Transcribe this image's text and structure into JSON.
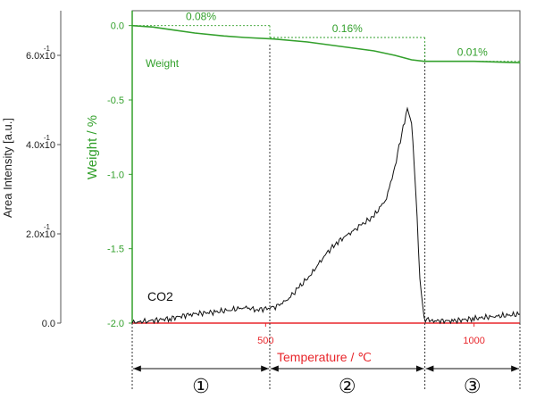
{
  "colors": {
    "weight": "#33a02c",
    "co2": "#111111",
    "temp_axis": "#e8262b",
    "left_axis": "#555555"
  },
  "chart_data": {
    "type": "line",
    "title": "",
    "left_axis": {
      "label": "Area Intensity [a.u.]",
      "ticks": [
        {
          "value": 0.0,
          "label": "0.0",
          "exp": ""
        },
        {
          "value": 0.2,
          "label": "2.0x10",
          "exp": "-1"
        },
        {
          "value": 0.4,
          "label": "4.0x10",
          "exp": "-1"
        },
        {
          "value": 0.6,
          "label": "6.0x10",
          "exp": "-1"
        }
      ],
      "range": [
        0,
        0.7
      ]
    },
    "weight_axis": {
      "label": "Weight / %",
      "ticks": [
        {
          "value": 0.0,
          "label": "0.0"
        },
        {
          "value": -0.5,
          "label": "-0.5"
        },
        {
          "value": -1.0,
          "label": "-1.0"
        },
        {
          "value": -1.5,
          "label": "-1.5"
        },
        {
          "value": -2.0,
          "label": "-2.0"
        }
      ],
      "range": [
        -2.0,
        0.1
      ]
    },
    "x_axis": {
      "label": "Temperature / ℃",
      "ticks": [
        {
          "value": 500,
          "label": "500"
        },
        {
          "value": 1000,
          "label": "1000"
        }
      ],
      "range": [
        180,
        1110
      ]
    },
    "series": [
      {
        "name": "Weight",
        "axis": "weight",
        "points": [
          [
            180,
            0.0
          ],
          [
            230,
            -0.01
          ],
          [
            280,
            -0.03
          ],
          [
            330,
            -0.05
          ],
          [
            400,
            -0.07
          ],
          [
            450,
            -0.08
          ],
          [
            520,
            -0.09
          ],
          [
            600,
            -0.11
          ],
          [
            680,
            -0.14
          ],
          [
            760,
            -0.17
          ],
          [
            810,
            -0.2
          ],
          [
            850,
            -0.23
          ],
          [
            880,
            -0.24
          ],
          [
            920,
            -0.24
          ],
          [
            1000,
            -0.24
          ],
          [
            1110,
            -0.25
          ]
        ]
      },
      {
        "name": "CO2",
        "axis": "area",
        "points": [
          [
            180,
            0.0
          ],
          [
            220,
            0.005
          ],
          [
            270,
            0.01
          ],
          [
            320,
            0.02
          ],
          [
            380,
            0.025
          ],
          [
            420,
            0.03
          ],
          [
            450,
            0.035
          ],
          [
            480,
            0.03
          ],
          [
            520,
            0.035
          ],
          [
            550,
            0.05
          ],
          [
            580,
            0.08
          ],
          [
            610,
            0.11
          ],
          [
            640,
            0.15
          ],
          [
            670,
            0.18
          ],
          [
            700,
            0.2
          ],
          [
            730,
            0.22
          ],
          [
            760,
            0.24
          ],
          [
            790,
            0.28
          ],
          [
            810,
            0.35
          ],
          [
            830,
            0.44
          ],
          [
            840,
            0.48
          ],
          [
            850,
            0.45
          ],
          [
            860,
            0.3
          ],
          [
            870,
            0.1
          ],
          [
            880,
            0.01
          ],
          [
            900,
            0.005
          ],
          [
            950,
            0.005
          ],
          [
            1000,
            0.01
          ],
          [
            1050,
            0.015
          ],
          [
            1110,
            0.02
          ]
        ]
      }
    ],
    "annotations": {
      "weight_label": "Weight",
      "co2_label": "CO2",
      "steps": [
        {
          "label": "0.08%",
          "from": 180,
          "to": 510,
          "level_top": 0.0,
          "level_bottom": -0.08
        },
        {
          "label": "0.16%",
          "from": 510,
          "to": 882,
          "level_top": -0.08,
          "level_bottom": -0.24
        },
        {
          "label": "0.01%",
          "from": 882,
          "to": 1110,
          "level_top": -0.24,
          "level_bottom": -0.25
        }
      ],
      "dividers": [
        510,
        882
      ],
      "regions": [
        {
          "label": "①",
          "from": 180,
          "to": 510
        },
        {
          "label": "②",
          "from": 510,
          "to": 882
        },
        {
          "label": "③",
          "from": 882,
          "to": 1110
        }
      ]
    },
    "legend": "none",
    "grid": false
  }
}
